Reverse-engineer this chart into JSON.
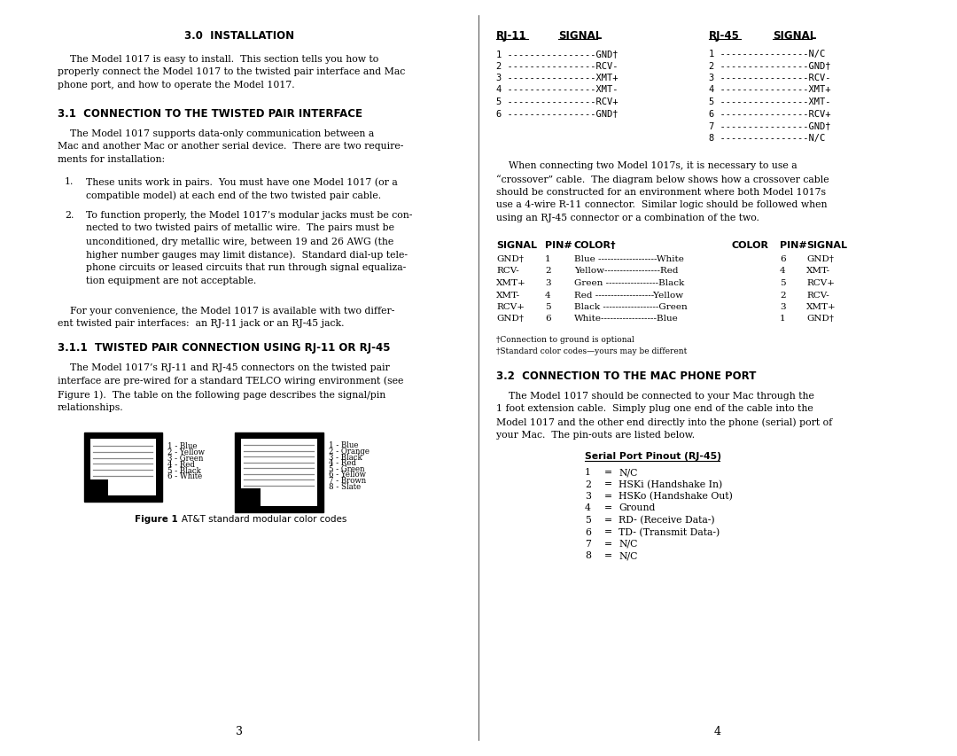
{
  "bg_color": "#ffffff",
  "left_col": {
    "section_title": "3.0  INSTALLATION",
    "intro_text": "    The Model 1017 is easy to install.  This section tells you how to\nproperly connect the Model 1017 to the twisted pair interface and Mac\nphone port, and how to operate the Model 1017.",
    "section_31_title": "3.1  CONNECTION TO THE TWISTED PAIR INTERFACE",
    "section_31_text": "    The Model 1017 supports data-only communication between a\nMac and another Mac or another serial device.  There are two require-\nments for installation:",
    "item1": "These units work in pairs.  You must have one Model 1017 (or a\ncompatible model) at each end of the two twisted pair cable.",
    "item2": "To function properly, the Model 1017’s modular jacks must be con-\nnected to two twisted pairs of metallic wire.  The pairs must be\nunconditioned, dry metallic wire, between 19 and 26 AWG (the\nhigher number gauges may limit distance).  Standard dial-up tele-\nphone circuits or leased circuits that run through signal equaliza-\ntion equipment are not acceptable.",
    "para2": "    For your convenience, the Model 1017 is available with two differ-\nent twisted pair interfaces:  an RJ-11 jack or an RJ-45 jack.",
    "section_311_title": "3.1.1  TWISTED PAIR CONNECTION USING RJ-11 OR RJ-45",
    "section_311_text": "    The Model 1017’s RJ-11 and RJ-45 connectors on the twisted pair\ninterface are pre-wired for a standard TELCO wiring environment (see\nFigure 1).  The table on the following page describes the signal/pin\nrelationships.",
    "rj11_labels": [
      "1 - Blue",
      "2 - Yellow",
      "3 - Green",
      "4 - Red",
      "5 - Black",
      "6 - White"
    ],
    "rj45_labels": [
      "1 - Blue",
      "2 - Orange",
      "3 - Black",
      "4 - Red",
      "5 - Green",
      "6 - Yellow",
      "7 - Brown",
      "8 - Slate"
    ],
    "figure_caption_bold": "Figure 1",
    "figure_caption_rest": ".  AT&T standard modular color codes",
    "page_num": "3"
  },
  "right_col": {
    "rj11_pins": [
      "1 ----------------GND†",
      "2 ----------------RCV-",
      "3 ----------------XMT+",
      "4 ----------------XMT-",
      "5 ----------------RCV+",
      "6 ----------------GND†"
    ],
    "rj45_pins": [
      "1 ----------------N/C",
      "2 ----------------GND†",
      "3 ----------------RCV-",
      "4 ----------------XMT+",
      "5 ----------------XMT-",
      "6 ----------------RCV+",
      "7 ----------------GND†",
      "8 ----------------N/C"
    ],
    "crossover_intro": "    When connecting two Model 1017s, it is necessary to use a\n“crossover” cable.  The diagram below shows how a crossover cable\nshould be constructed for an environment where both Model 1017s\nuse a 4-wire R-11 connector.  Similar logic should be followed when\nusing an RJ-45 connector or a combination of the two.",
    "table_headers": [
      "SIGNAL",
      "PIN#",
      "COLOR†",
      "COLOR",
      "PIN#",
      "SIGNAL"
    ],
    "table_rows": [
      [
        "GND†",
        "1",
        "Blue -------------------White",
        "6",
        "GND†"
      ],
      [
        "RCV-",
        "2",
        "Yellow------------------Red",
        "4",
        "XMT-"
      ],
      [
        "XMT+",
        "3",
        "Green -----------------Black",
        "5",
        "RCV+"
      ],
      [
        "XMT-",
        "4",
        "Red -------------------Yellow",
        "2",
        "RCV-"
      ],
      [
        "RCV+",
        "5",
        "Black ------------------Green",
        "3",
        "XMT+"
      ],
      [
        "GND†",
        "6",
        "White------------------Blue",
        "1",
        "GND†"
      ]
    ],
    "footnote1": "†Connection to ground is optional",
    "footnote2": "†Standard color codes—yours may be different",
    "section_32_title": "3.2  CONNECTION TO THE MAC PHONE PORT",
    "section_32_text": "    The Model 1017 should be connected to your Mac through the\n1 foot extension cable.  Simply plug one end of the cable into the\nModel 1017 and the other end directly into the phone (serial) port of\nyour Mac.  The pin-outs are listed below.",
    "serial_title": "Serial Port Pinout (RJ-45)",
    "serial_pins": [
      [
        "1",
        "N/C"
      ],
      [
        "2",
        "HSKi (Handshake In)"
      ],
      [
        "3",
        "HSKo (Handshake Out)"
      ],
      [
        "4",
        "Ground"
      ],
      [
        "5",
        "RD- (Receive Data-)"
      ],
      [
        "6",
        "TD- (Transmit Data-)"
      ],
      [
        "7",
        "N/C"
      ],
      [
        "8",
        "N/C"
      ]
    ],
    "page_num": "4"
  }
}
